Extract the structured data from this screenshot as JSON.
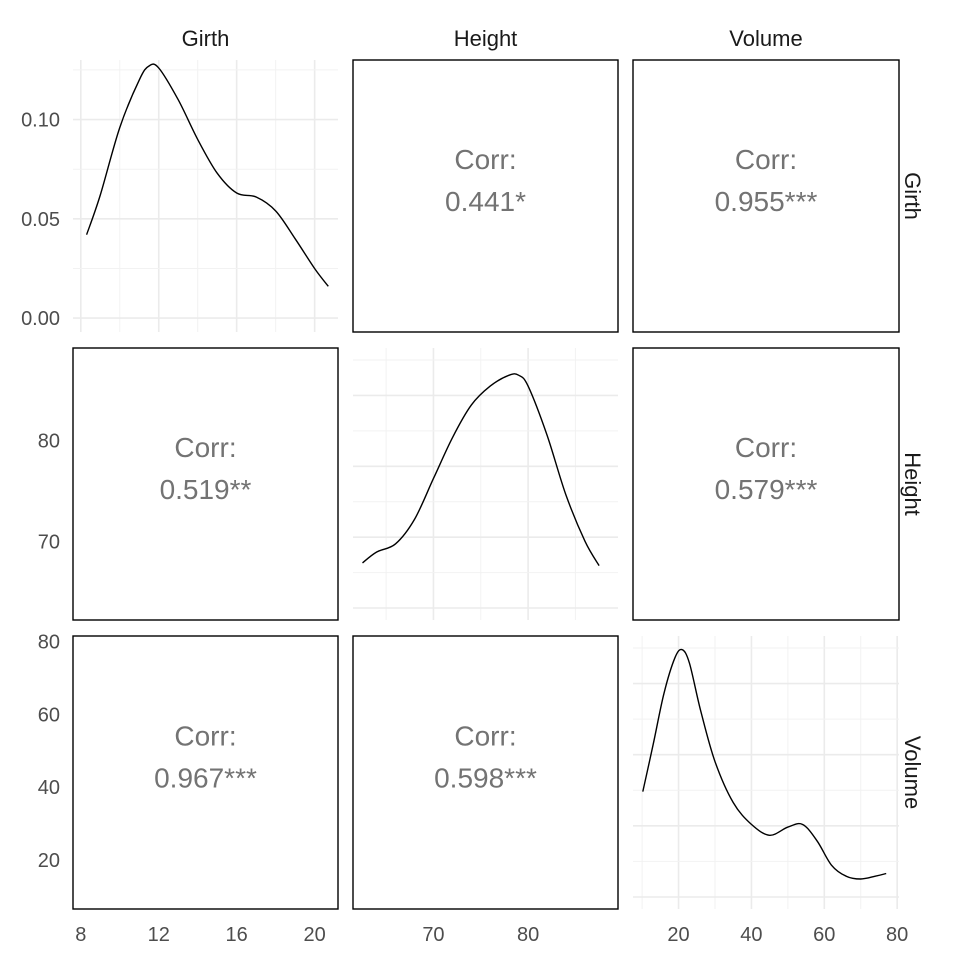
{
  "chart_data": {
    "type": "pairs",
    "variables": [
      "Girth",
      "Height",
      "Volume"
    ],
    "diagonal": [
      {
        "type": "density",
        "variable": "Girth",
        "xlim": [
          7.6,
          21.2
        ],
        "ylim": [
          -0.007,
          0.13
        ],
        "x_ticks": [
          8,
          12,
          16,
          20
        ],
        "y_ticks": [
          0.0,
          0.05,
          0.1
        ],
        "y_tick_labels": [
          "0.00",
          "0.05",
          "0.10"
        ],
        "y_minor": [
          0.025,
          0.075,
          0.125
        ],
        "points": [
          [
            8.3,
            0.042
          ],
          [
            9.0,
            0.062
          ],
          [
            10.0,
            0.096
          ],
          [
            11.0,
            0.12
          ],
          [
            11.5,
            0.127
          ],
          [
            12.0,
            0.126
          ],
          [
            13.0,
            0.11
          ],
          [
            14.0,
            0.09
          ],
          [
            15.0,
            0.073
          ],
          [
            16.0,
            0.063
          ],
          [
            17.0,
            0.061
          ],
          [
            18.0,
            0.054
          ],
          [
            19.0,
            0.04
          ],
          [
            20.0,
            0.025
          ],
          [
            20.7,
            0.016
          ]
        ]
      },
      {
        "type": "density",
        "variable": "Height",
        "xlim": [
          61.5,
          89.5
        ],
        "ylim": [
          0,
          1
        ],
        "x_ticks": [
          70,
          80
        ],
        "points": [
          [
            62.5,
            0.21
          ],
          [
            64.0,
            0.25
          ],
          [
            66.0,
            0.28
          ],
          [
            68.0,
            0.37
          ],
          [
            70.0,
            0.52
          ],
          [
            72.0,
            0.67
          ],
          [
            74.0,
            0.79
          ],
          [
            76.0,
            0.86
          ],
          [
            78.0,
            0.9
          ],
          [
            79.0,
            0.9
          ],
          [
            80.0,
            0.86
          ],
          [
            82.0,
            0.68
          ],
          [
            84.0,
            0.46
          ],
          [
            86.0,
            0.29
          ],
          [
            87.5,
            0.2
          ]
        ]
      },
      {
        "type": "density",
        "variable": "Volume",
        "xlim": [
          7.5,
          80.5
        ],
        "ylim": [
          0,
          1
        ],
        "x_ticks": [
          20,
          40,
          60,
          80
        ],
        "points": [
          [
            10.2,
            0.43
          ],
          [
            13.0,
            0.6
          ],
          [
            16.0,
            0.79
          ],
          [
            19.0,
            0.92
          ],
          [
            21.0,
            0.95
          ],
          [
            23.0,
            0.9
          ],
          [
            26.0,
            0.73
          ],
          [
            30.0,
            0.54
          ],
          [
            35.0,
            0.39
          ],
          [
            40.0,
            0.31
          ],
          [
            45.0,
            0.27
          ],
          [
            50.0,
            0.3
          ],
          [
            54.0,
            0.31
          ],
          [
            58.0,
            0.25
          ],
          [
            62.0,
            0.16
          ],
          [
            66.0,
            0.12
          ],
          [
            70.0,
            0.11
          ],
          [
            74.0,
            0.12
          ],
          [
            77.0,
            0.13
          ]
        ]
      }
    ],
    "correlations": [
      {
        "row": 0,
        "col": 1,
        "label": "Corr:",
        "value": "0.441*"
      },
      {
        "row": 0,
        "col": 2,
        "label": "Corr:",
        "value": "0.955***"
      },
      {
        "row": 1,
        "col": 0,
        "label": "Corr:",
        "value": "0.519**"
      },
      {
        "row": 1,
        "col": 2,
        "label": "Corr:",
        "value": "0.579***"
      },
      {
        "row": 2,
        "col": 0,
        "label": "Corr:",
        "value": "0.967***"
      },
      {
        "row": 2,
        "col": 1,
        "label": "Corr:",
        "value": "0.598***"
      }
    ],
    "y_axes": [
      {
        "row": 0,
        "variable": "Girth (density)",
        "ylim": [
          -0.007,
          0.13
        ],
        "ticks": [
          0.0,
          0.05,
          0.1
        ],
        "labels": [
          "0.00",
          "0.05",
          "0.10"
        ]
      },
      {
        "row": 1,
        "variable": "Height",
        "ylim": [
          62.2,
          89.2
        ],
        "ticks": [
          70,
          80
        ],
        "labels": [
          "70",
          "80"
        ]
      },
      {
        "row": 2,
        "variable": "Volume",
        "ylim": [
          6.5,
          81.5
        ],
        "ticks": [
          20,
          40,
          60,
          80
        ],
        "labels": [
          "20",
          "40",
          "60",
          "80"
        ]
      }
    ],
    "x_axes": [
      {
        "col": 0,
        "variable": "Girth",
        "xlim": [
          7.6,
          21.2
        ],
        "ticks": [
          8,
          12,
          16,
          20
        ],
        "labels": [
          "8",
          "12",
          "16",
          "20"
        ]
      },
      {
        "col": 1,
        "variable": "Height",
        "xlim": [
          61.5,
          89.5
        ],
        "ticks": [
          70,
          80
        ],
        "labels": [
          "70",
          "80"
        ]
      },
      {
        "col": 2,
        "variable": "Volume",
        "xlim": [
          7.5,
          80.5
        ],
        "ticks": [
          20,
          40,
          60,
          80
        ],
        "labels": [
          "20",
          "40",
          "60",
          "80"
        ]
      }
    ]
  }
}
